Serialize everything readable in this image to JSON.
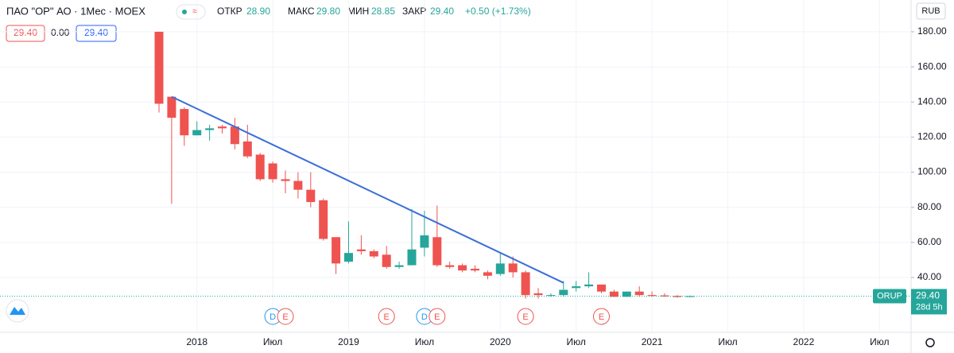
{
  "header": {
    "symbol": "ПАО \"OP\" АО · 1Мес · MOEX",
    "open_label": "ОТКР",
    "open": "28.90",
    "high_label": "МАКС",
    "high": "29.80",
    "low_label": "МИН",
    "low": "28.85",
    "close_label": "ЗАКР",
    "close": "29.40",
    "change": "+0.50 (+1.73%)",
    "inputs": [
      "29.40",
      "0.00",
      "29.40"
    ],
    "currency": "RUB"
  },
  "chart_data": {
    "type": "candlestick",
    "categories": [
      null,
      null,
      null,
      "2018",
      null,
      null,
      null,
      null,
      null,
      "Июл",
      null,
      null,
      null,
      null,
      null,
      "2019",
      null,
      null,
      null,
      null,
      null,
      "Июл",
      null,
      null,
      null,
      null,
      null,
      "2020",
      null,
      null,
      null,
      null,
      null,
      "Июл",
      null,
      null,
      null,
      null,
      null,
      "2021",
      null,
      null,
      null
    ],
    "future_categories": [
      "Июл",
      "2022",
      "Июл"
    ],
    "up_color": "#26a69a",
    "down_color": "#ef5350",
    "open": [
      180,
      143,
      136,
      121,
      124,
      126,
      126,
      117.5,
      110,
      105,
      96,
      95,
      90,
      84,
      63,
      49,
      56,
      55,
      53,
      46,
      47,
      57,
      63,
      47,
      47,
      45,
      43,
      42,
      48,
      43,
      31,
      30,
      30,
      34,
      35,
      36,
      32,
      29,
      32,
      30,
      29.8,
      29.5,
      28.9
    ],
    "high": [
      180,
      143,
      137,
      129,
      127,
      127,
      131,
      127,
      111,
      106,
      101,
      100,
      100,
      85,
      63,
      72,
      64,
      56,
      58,
      49,
      79,
      78,
      81,
      49,
      48,
      47,
      44,
      54,
      52,
      44,
      34,
      31,
      38,
      38,
      43,
      36,
      33,
      32,
      35,
      32,
      31,
      30,
      29.8
    ],
    "low": [
      134,
      82,
      115,
      121,
      118,
      122,
      113,
      108,
      95,
      94,
      88,
      85,
      80,
      61,
      42,
      48,
      53,
      51,
      45,
      45,
      47,
      52,
      46,
      45,
      43,
      43,
      39,
      41,
      40,
      28,
      28,
      29,
      29,
      32,
      34,
      31,
      29,
      29,
      29,
      29,
      29,
      28.5,
      28.85
    ],
    "close": [
      139,
      131,
      121,
      124,
      125,
      125,
      116,
      109,
      96,
      96,
      95,
      90,
      83,
      62,
      48,
      54,
      55,
      52,
      46,
      47,
      56,
      64,
      47,
      46,
      44,
      44,
      41,
      48,
      43,
      30,
      30,
      30,
      33,
      35,
      36,
      32,
      29,
      32,
      30,
      29.5,
      29.2,
      28.9,
      29.4
    ],
    "ylim": [
      12.4,
      184.5
    ],
    "yticks": [
      {
        "value": 40,
        "label": "40.00"
      },
      {
        "value": 60,
        "label": "60.00"
      },
      {
        "value": 80,
        "label": "80.00"
      },
      {
        "value": 100,
        "label": "100.00"
      },
      {
        "value": 120,
        "label": "120.00"
      },
      {
        "value": 140,
        "label": "140.00"
      },
      {
        "value": 160,
        "label": "160.00"
      },
      {
        "value": 180,
        "label": "180.00"
      }
    ],
    "trendline": {
      "color": "#3a6fd8",
      "start": [
        1,
        143
      ],
      "end": [
        32,
        37
      ]
    },
    "last_price": {
      "ticker": "ORUP",
      "value": 29.4,
      "label": "29.40",
      "countdown": "28d 5h"
    },
    "events": [
      {
        "index": 9,
        "label": "D"
      },
      {
        "index": 10,
        "label": "E"
      },
      {
        "index": 18,
        "label": "E"
      },
      {
        "index": 21,
        "label": "D"
      },
      {
        "index": 22,
        "label": "E"
      },
      {
        "index": 29,
        "label": "E"
      },
      {
        "index": 35,
        "label": "E"
      }
    ]
  }
}
